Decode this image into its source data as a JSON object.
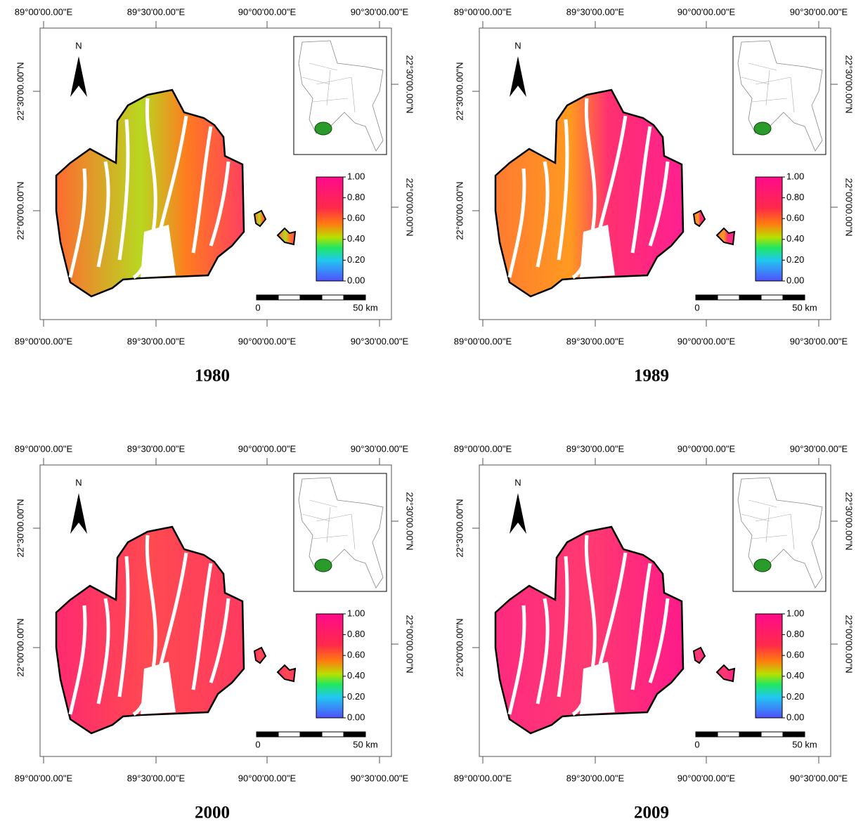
{
  "panels": [
    {
      "year": "1980",
      "top_labels": [
        "89°00'00.00\"E",
        "89°30'00.00\"E",
        "90°00'00.00\"E",
        "90°30'00.00\"E"
      ],
      "bottom_labels": [
        "89°00'00.00\"E",
        "89°30'00.00\"E",
        "90°00'00.00\"E",
        "90°30'00.00\"E"
      ],
      "left_labels": [
        "22°30'00.00\"N",
        "22°00'00.00\"N"
      ],
      "right_labels": [
        "22°30'00.00\"N",
        "22°00'00.00\"N"
      ],
      "north": "N",
      "legend_labels": [
        "1.00",
        "0.80",
        "0.60",
        "0.40",
        "0.20",
        "0.00"
      ],
      "scale_labels": [
        "0",
        "50 km"
      ]
    },
    {
      "year": "1989",
      "top_labels": [
        "89°00'00.00\"E",
        "89°30'00.00\"E",
        "90°00'00.00\"E",
        "90°30'00.00\"E"
      ],
      "bottom_labels": [
        "89°00'00.00\"E",
        "89°30'00.00\"E",
        "90°00'00.00\"E",
        "90°30'00.00\"E"
      ],
      "left_labels": [
        "22°30'00.00\"N",
        "22°00'00.00\"N"
      ],
      "right_labels": [
        "22°30'00.00\"N",
        "22°00'00.00\"N"
      ],
      "north": "N",
      "legend_labels": [
        "1.00",
        "0.80",
        "0.60",
        "0.40",
        "0.20",
        "0.00"
      ],
      "scale_labels": [
        "0",
        "50 km"
      ]
    },
    {
      "year": "2000",
      "top_labels": [
        "89°00'00.00\"E",
        "89°30'00.00\"E",
        "90°00'00.00\"E",
        "90°30'00.00\"E"
      ],
      "bottom_labels": [
        "89°00'00.00\"E",
        "89°30'00.00\"E",
        "90°00'00.00\"E",
        "90°30'00.00\"E"
      ],
      "left_labels": [
        "22°30'00.00\"N",
        "22°00'00.00\"N"
      ],
      "right_labels": [
        "22°30'00.00\"N",
        "22°00'00.00\"N"
      ],
      "north": "N",
      "legend_labels": [
        "1.00",
        "0.80",
        "0.60",
        "0.40",
        "0.20",
        "0.00"
      ],
      "scale_labels": [
        "0",
        "50 km"
      ]
    },
    {
      "year": "2009",
      "top_labels": [
        "89°00'00.00\"E",
        "89°30'00.00\"E",
        "90°00'00.00\"E",
        "90°30'00.00\"E"
      ],
      "bottom_labels": [
        "89°00'00.00\"E",
        "89°30'00.00\"E",
        "90°00'00.00\"E",
        "90°30'00.00\"E"
      ],
      "left_labels": [
        "22°30'00.00\"N",
        "22°00'00.00\"N"
      ],
      "right_labels": [
        "22°30'00.00\"N",
        "22°00'00.00\"N"
      ],
      "north": "N",
      "legend_labels": [
        "1.00",
        "0.80",
        "0.60",
        "0.40",
        "0.20",
        "0.00"
      ],
      "scale_labels": [
        "0",
        "50 km"
      ]
    }
  ]
}
